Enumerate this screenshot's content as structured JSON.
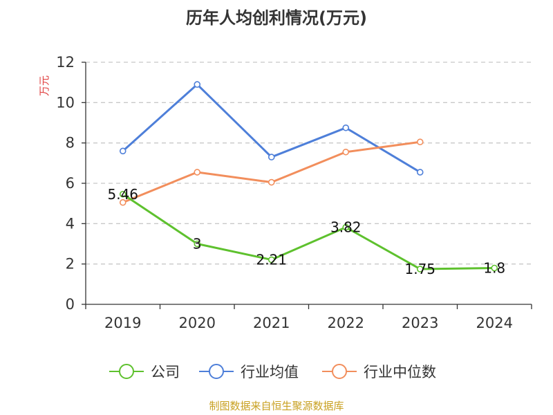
{
  "chart_data": {
    "type": "line",
    "title": "历年人均创利情况(万元)",
    "ylabel": "万元",
    "categories": [
      "2019",
      "2020",
      "2021",
      "2022",
      "2023",
      "2024"
    ],
    "ylim": [
      0,
      12
    ],
    "yticks": [
      0,
      2,
      4,
      6,
      8,
      10,
      12
    ],
    "grid": true,
    "legend_position": "bottom",
    "series": [
      {
        "name": "公司",
        "color": "#5ec12e",
        "values": [
          5.46,
          3,
          2.21,
          3.82,
          1.75,
          1.8
        ],
        "labels": [
          "5.46",
          "3",
          "2.21",
          "3.82",
          "1.75",
          "1.8"
        ]
      },
      {
        "name": "行业均值",
        "color": "#4e7fd9",
        "values": [
          7.6,
          10.9,
          7.3,
          8.75,
          6.55,
          null
        ]
      },
      {
        "name": "行业中位数",
        "color": "#f28e5c",
        "values": [
          5.05,
          6.55,
          6.05,
          7.55,
          8.05,
          null
        ]
      }
    ],
    "source": "制图数据来自恒生聚源数据库",
    "ylabel_color": "#e04040",
    "source_color": "#c8a020"
  }
}
